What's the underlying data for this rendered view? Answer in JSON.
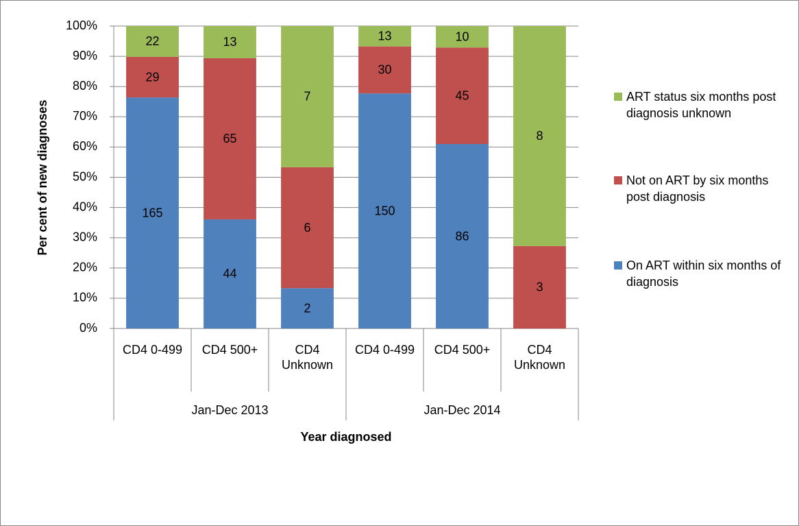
{
  "chart_data": {
    "type": "bar",
    "stacking": "percent",
    "ylabel": "Per cent of new diagnoses",
    "xlabel": "Year diagnosed",
    "category_groups": [
      {
        "name": "Jan-Dec 2013",
        "categories": [
          "CD4 0-499",
          "CD4 500+",
          "CD4 Unknown"
        ]
      },
      {
        "name": "Jan-Dec 2014",
        "categories": [
          "CD4 0-499",
          "CD4 500+",
          "CD4 Unknown"
        ]
      }
    ],
    "series": [
      {
        "name": "On ART within six months of diagnosis",
        "color": "#4f81bd",
        "values": [
          165,
          44,
          2,
          150,
          86,
          0
        ]
      },
      {
        "name": "Not on ART by six months post diagnosis",
        "color": "#c0504d",
        "values": [
          29,
          65,
          6,
          30,
          45,
          3
        ]
      },
      {
        "name": "ART status six months post diagnosis unknown",
        "color": "#9bbb59",
        "values": [
          22,
          13,
          7,
          13,
          10,
          8
        ]
      }
    ],
    "ylim": [
      0,
      100
    ],
    "yticks": [
      {
        "value": 0,
        "label": "0%"
      },
      {
        "value": 10,
        "label": "10%"
      },
      {
        "value": 20,
        "label": "20%"
      },
      {
        "value": 30,
        "label": "30%"
      },
      {
        "value": 40,
        "label": "40%"
      },
      {
        "value": 50,
        "label": "50%"
      },
      {
        "value": 60,
        "label": "60%"
      },
      {
        "value": 70,
        "label": "70%"
      },
      {
        "value": 80,
        "label": "80%"
      },
      {
        "value": 90,
        "label": "90%"
      },
      {
        "value": 100,
        "label": "100%"
      }
    ],
    "grid": true,
    "legend": "right"
  }
}
